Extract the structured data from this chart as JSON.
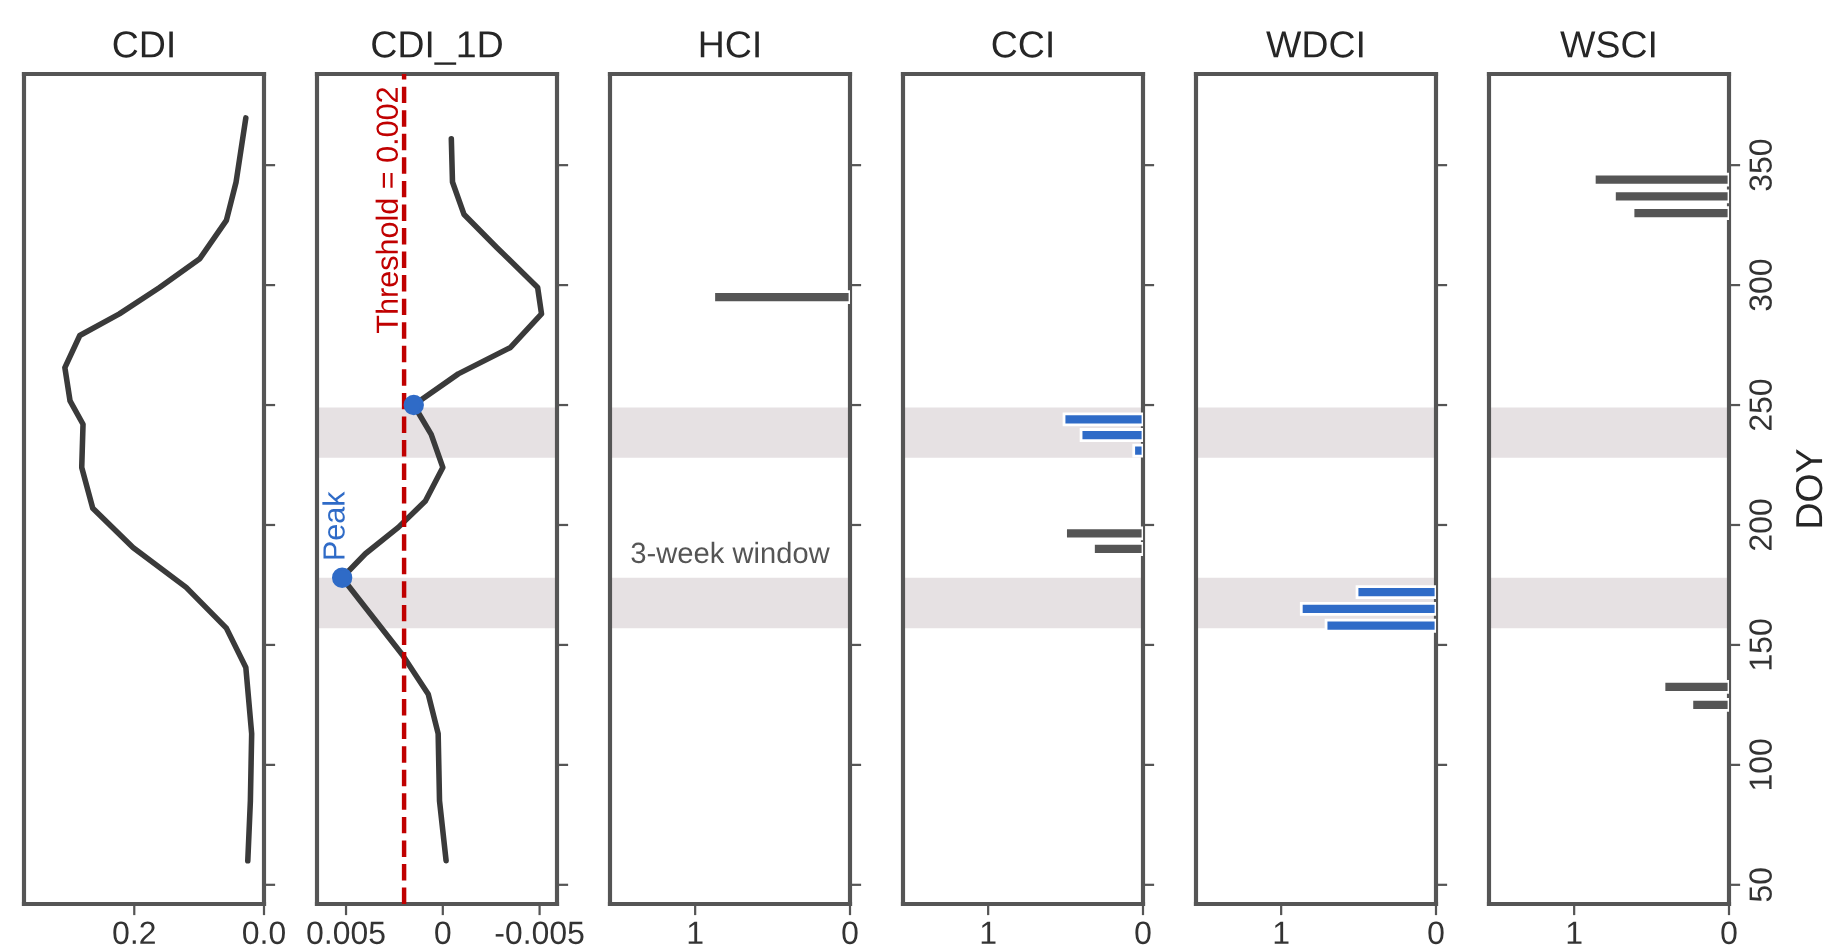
{
  "chart_data": [
    {
      "type": "line",
      "title": "CDI",
      "orientation": "horizontal",
      "xlim": [
        0.37,
        0.0
      ],
      "xticks": [
        {
          "value": 0.2,
          "label": "0.2"
        },
        {
          "value": 0.0,
          "label": "0.0"
        }
      ],
      "ylim": [
        42,
        388
      ],
      "yticks": [
        50,
        100,
        150,
        200,
        250,
        300,
        350
      ],
      "tick_labels": "x",
      "series": [
        {
          "type": "line",
          "color": "#3a3a3a",
          "x": [
            369.7,
            343,
            327,
            311,
            299,
            288,
            279,
            265.6,
            251.7,
            242,
            224,
            207,
            190.6,
            174,
            157,
            140.6,
            113,
            85,
            60
          ],
          "values": [
            0.028,
            0.043,
            0.058,
            0.099,
            0.161,
            0.223,
            0.284,
            0.307,
            0.299,
            0.279,
            0.281,
            0.264,
            0.202,
            0.12,
            0.058,
            0.028,
            0.019,
            0.021,
            0.025
          ]
        }
      ]
    },
    {
      "type": "line",
      "title": "CDI_1D",
      "orientation": "horizontal",
      "xlim": [
        0.0065,
        -0.0059
      ],
      "xticks": [
        0.005,
        0,
        -0.005
      ],
      "ylim": [
        42,
        388
      ],
      "yticks": [
        50,
        100,
        150,
        200,
        250,
        300,
        350
      ],
      "tick_labels": "x",
      "series": [
        {
          "type": "line",
          "color": "#3a3a3a",
          "x": [
            361,
            343,
            329.4,
            315.6,
            299,
            288,
            274,
            263,
            250,
            237.8,
            224,
            210,
            199,
            188,
            178,
            165.6,
            146,
            129.4,
            113,
            85,
            60
          ],
          "values": [
            -0.00044,
            -0.0005,
            -0.0011,
            -0.0028,
            -0.0049,
            -0.0051,
            -0.0035,
            -0.0008,
            0.0015,
            0.0006,
            0.0,
            0.0009,
            0.0023,
            0.004,
            0.0052,
            0.004,
            0.0021,
            0.00075,
            0.00024,
            0.00017,
            -0.00017
          ]
        },
        {
          "type": "scatter",
          "color": "#2f6bc7",
          "x": [
            178,
            250
          ],
          "values": [
            0.0052,
            0.0015
          ]
        }
      ],
      "ref_lines": [
        {
          "axis": "x",
          "value": 0.002,
          "label": "Threshold = 0.002",
          "color": "#c00000",
          "line_style": "dashed"
        }
      ],
      "bands": [
        {
          "axis": "y",
          "from": 228,
          "to": 249,
          "color": "#e6e1e3"
        },
        {
          "axis": "y",
          "from": 157,
          "to": 178,
          "color": "#e6e1e3"
        }
      ],
      "annotations": [
        {
          "text": "Peak",
          "x": 0.0052,
          "y": 178
        }
      ]
    },
    {
      "type": "bar",
      "title": "HCI",
      "orientation": "horizontal",
      "xlim": [
        1.55,
        0
      ],
      "xticks": [
        1,
        0
      ],
      "ylim": [
        42,
        388
      ],
      "yticks": [
        50,
        100,
        150,
        200,
        250,
        300,
        350
      ],
      "tick_labels": "x",
      "series": [
        {
          "color": "#555555",
          "x": [
            295
          ],
          "values": [
            0.88
          ]
        }
      ],
      "bands": [
        {
          "axis": "y",
          "from": 228,
          "to": 249,
          "color": "#e6e1e3"
        },
        {
          "axis": "y",
          "from": 157,
          "to": 178,
          "color": "#e6e1e3"
        }
      ],
      "annotations": [
        "3-week window"
      ]
    },
    {
      "type": "bar",
      "title": "CCI",
      "orientation": "horizontal",
      "xlim": [
        1.55,
        0
      ],
      "xticks": [
        1,
        0
      ],
      "ylim": [
        42,
        388
      ],
      "yticks": [
        50,
        100,
        150,
        200,
        250,
        300,
        350
      ],
      "tick_labels": "x",
      "series": [
        {
          "color": "#2f6bc7",
          "x": [
            244,
            237.5,
            231
          ],
          "values": [
            0.51,
            0.4,
            0.06
          ]
        },
        {
          "color": "#555555",
          "x": [
            196.5,
            190
          ],
          "values": [
            0.5,
            0.32
          ]
        }
      ],
      "bands": [
        {
          "axis": "y",
          "from": 228,
          "to": 249,
          "color": "#e6e1e3"
        },
        {
          "axis": "y",
          "from": 157,
          "to": 178,
          "color": "#e6e1e3"
        }
      ]
    },
    {
      "type": "bar",
      "title": "WDCI",
      "orientation": "horizontal",
      "xlim": [
        1.55,
        0
      ],
      "xticks": [
        1,
        0
      ],
      "ylim": [
        42,
        388
      ],
      "yticks": [
        50,
        100,
        150,
        200,
        250,
        300,
        350
      ],
      "tick_labels": "x",
      "series": [
        {
          "color": "#2f6bc7",
          "x": [
            172,
            165,
            158
          ],
          "values": [
            0.51,
            0.87,
            0.71
          ]
        }
      ],
      "bands": [
        {
          "axis": "y",
          "from": 228,
          "to": 249,
          "color": "#e6e1e3"
        },
        {
          "axis": "y",
          "from": 157,
          "to": 178,
          "color": "#e6e1e3"
        }
      ]
    },
    {
      "type": "bar",
      "title": "WSCI",
      "ylabel": "DOY",
      "orientation": "horizontal",
      "xlim": [
        1.55,
        0
      ],
      "xticks": [
        1,
        0
      ],
      "ylim": [
        42,
        388
      ],
      "yticks": [
        50,
        100,
        150,
        200,
        250,
        300,
        350
      ],
      "series": [
        {
          "color": "#555555",
          "x": [
            344,
            337,
            330,
            132.5,
            125
          ],
          "values": [
            0.87,
            0.74,
            0.62,
            0.42,
            0.24
          ]
        }
      ],
      "bands": [
        {
          "axis": "y",
          "from": 228,
          "to": 249,
          "color": "#e6e1e3"
        },
        {
          "axis": "y",
          "from": 157,
          "to": 178,
          "color": "#e6e1e3"
        }
      ]
    }
  ]
}
